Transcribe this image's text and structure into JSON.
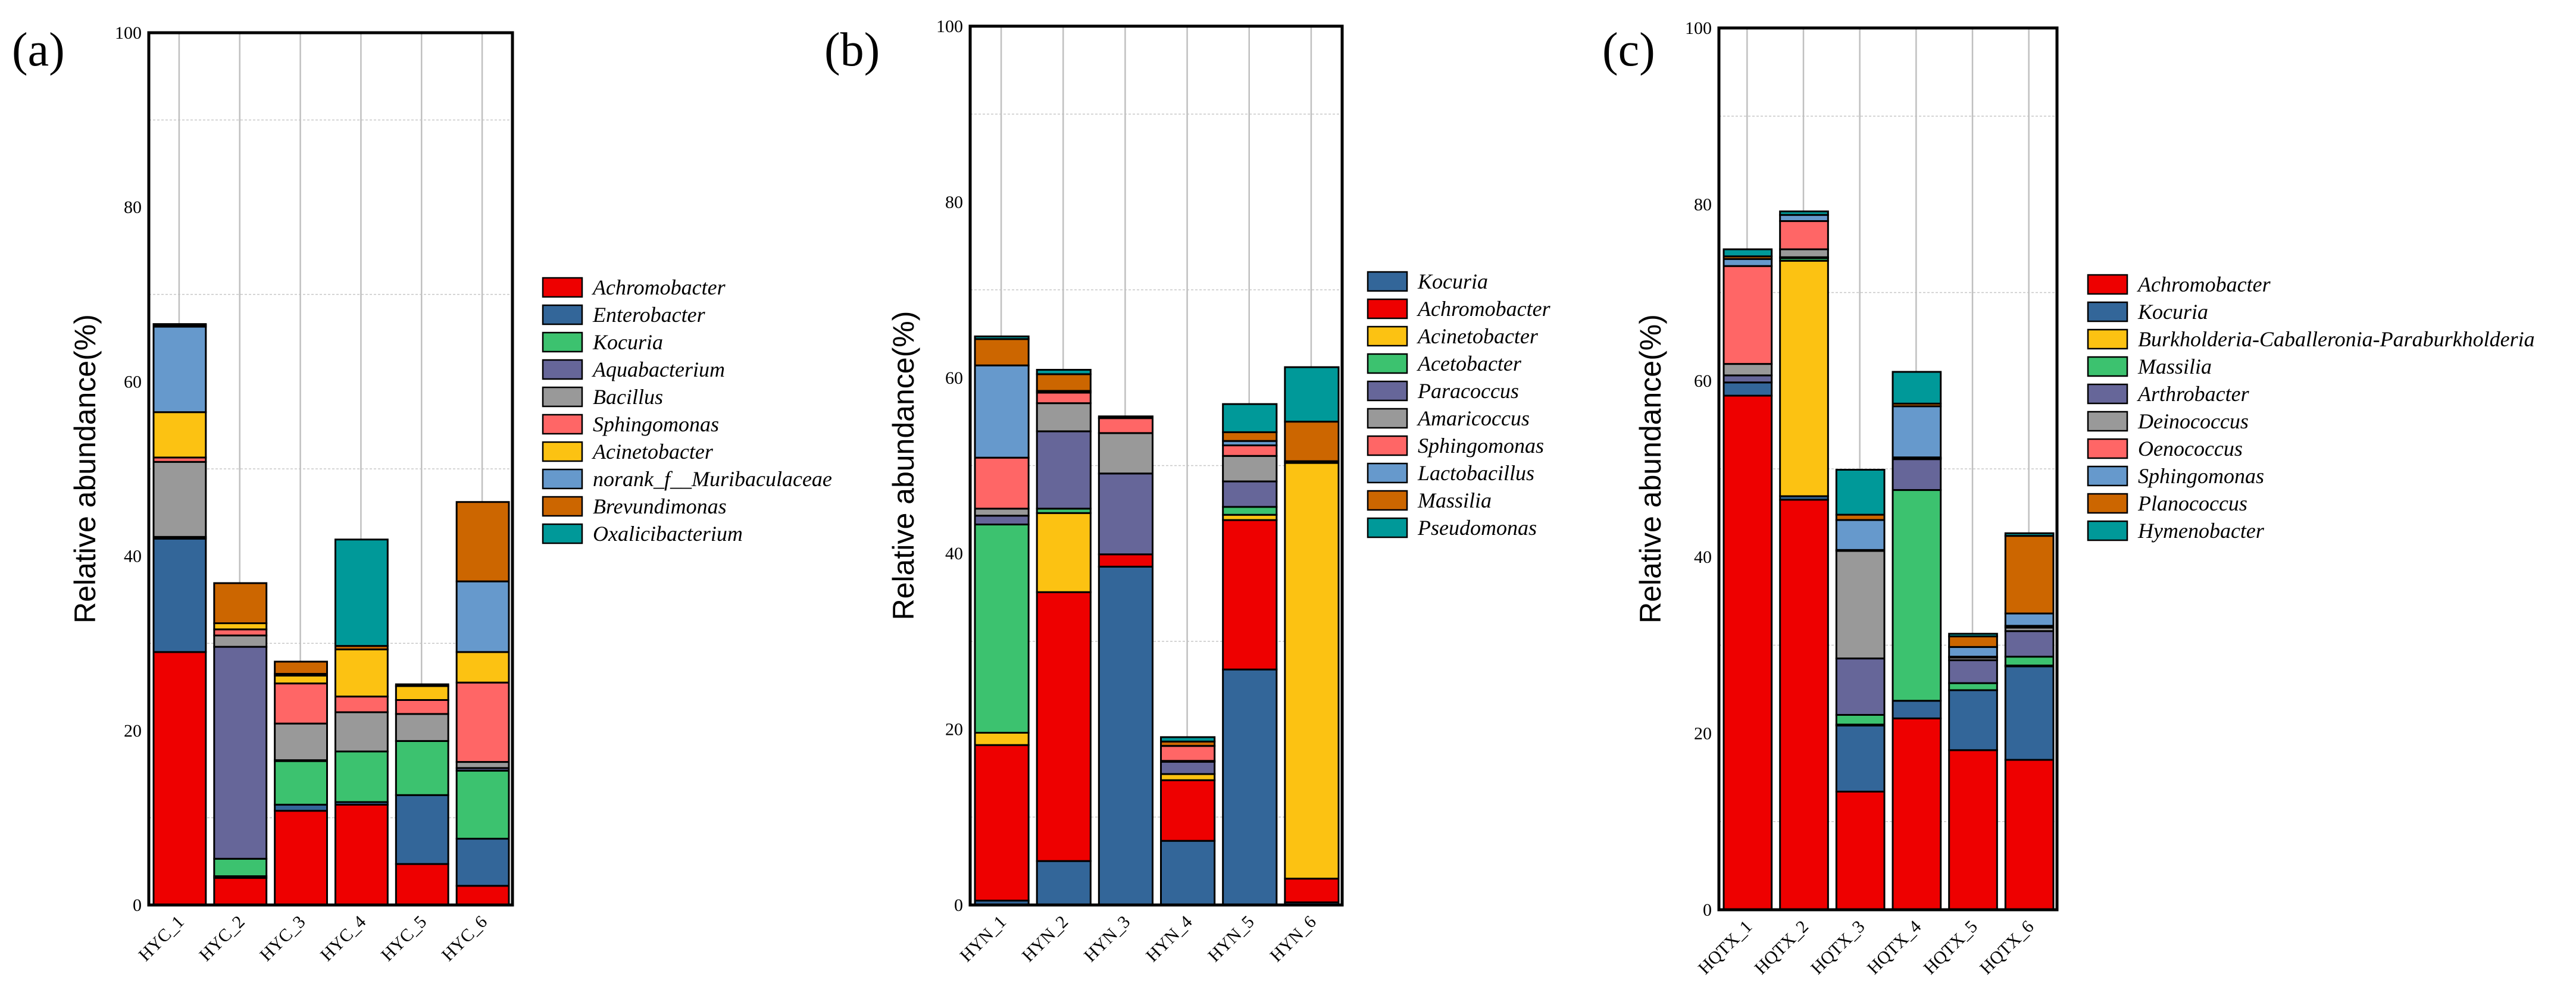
{
  "colors": [
    "#EE0000",
    "#336699",
    "#3CC26F",
    "#666699",
    "#999999",
    "#FF6666",
    "#FCC212",
    "#6699CC",
    "#CC6600",
    "#009999"
  ],
  "chart_data": [
    {
      "type": "bar",
      "stacked": true,
      "panel_label": "(a)",
      "ylabel": "Relative abundance(%)",
      "ylim": [
        0,
        100
      ],
      "yticks": [
        0,
        20,
        40,
        60,
        80,
        100
      ],
      "legend_position": "right",
      "categories": [
        "HYC_1",
        "HYC_2",
        "HYC_3",
        "HYC_4",
        "HYC_5",
        "HYC_6"
      ],
      "colors": [
        "#EE0000",
        "#336699",
        "#3CC26F",
        "#666699",
        "#999999",
        "#FF6666",
        "#FCC212",
        "#6699CC",
        "#CC6600",
        "#009999"
      ],
      "series": [
        {
          "name": "Achromobacter",
          "values": [
            29.0,
            3.1,
            10.8,
            11.5,
            4.7,
            2.2
          ]
        },
        {
          "name": "Enterobacter",
          "values": [
            13.0,
            0.2,
            0.7,
            0.3,
            7.9,
            5.4
          ]
        },
        {
          "name": "Kocuria",
          "values": [
            0.0,
            2.0,
            5.0,
            5.8,
            6.2,
            7.8
          ]
        },
        {
          "name": "Aquabacterium",
          "values": [
            0.2,
            24.3,
            0.1,
            0.0,
            0.0,
            0.3
          ]
        },
        {
          "name": "Bacillus",
          "values": [
            8.6,
            1.3,
            4.2,
            4.5,
            3.1,
            0.7
          ]
        },
        {
          "name": "Sphingomonas",
          "values": [
            0.5,
            0.7,
            4.6,
            1.8,
            1.6,
            9.1
          ]
        },
        {
          "name": "Acinetobacter",
          "values": [
            5.2,
            0.7,
            0.9,
            5.4,
            1.6,
            3.5
          ]
        },
        {
          "name": "norank_f__Muribaculaceae",
          "values": [
            9.8,
            0.0,
            0.2,
            0.0,
            0.0,
            8.1
          ]
        },
        {
          "name": "Brevundimonas",
          "values": [
            0.2,
            4.6,
            1.4,
            0.4,
            0.2,
            9.1
          ]
        },
        {
          "name": "Oxalicibacterium",
          "values": [
            0.1,
            0.0,
            0.0,
            12.2,
            0.0,
            0.0
          ]
        }
      ]
    },
    {
      "type": "bar",
      "stacked": true,
      "panel_label": "(b)",
      "ylabel": "Relative abundance(%)",
      "ylim": [
        0,
        100
      ],
      "yticks": [
        0,
        20,
        40,
        60,
        80,
        100
      ],
      "legend_position": "right",
      "categories": [
        "HYN_1",
        "HYN_2",
        "HYN_3",
        "HYN_4",
        "HYN_5",
        "HYN_6"
      ],
      "colors": [
        "#336699",
        "#EE0000",
        "#FCC212",
        "#3CC26F",
        "#666699",
        "#999999",
        "#FF6666",
        "#6699CC",
        "#CC6600",
        "#009999"
      ],
      "series": [
        {
          "name": "Kocuria",
          "values": [
            0.5,
            5.0,
            38.5,
            7.3,
            26.8,
            0.3
          ]
        },
        {
          "name": "Achromobacter",
          "values": [
            17.7,
            30.6,
            1.4,
            6.9,
            17.0,
            2.7
          ]
        },
        {
          "name": "Acinetobacter",
          "values": [
            1.4,
            9.0,
            0.0,
            0.7,
            0.6,
            47.3
          ]
        },
        {
          "name": "Acetobacter",
          "values": [
            23.7,
            0.5,
            0.0,
            0.0,
            0.9,
            0.0
          ]
        },
        {
          "name": "Paracoccus",
          "values": [
            1.0,
            8.8,
            9.2,
            1.4,
            2.9,
            0.0
          ]
        },
        {
          "name": "Amaricoccus",
          "values": [
            0.8,
            3.2,
            4.6,
            0.1,
            2.9,
            0.0
          ]
        },
        {
          "name": "Sphingomonas",
          "values": [
            5.8,
            1.2,
            1.7,
            1.7,
            1.2,
            0.0
          ]
        },
        {
          "name": "Lactobacillus",
          "values": [
            10.5,
            0.2,
            0.0,
            0.0,
            0.5,
            0.2
          ]
        },
        {
          "name": "Massilia",
          "values": [
            3.0,
            1.9,
            0.2,
            0.5,
            1.0,
            4.5
          ]
        },
        {
          "name": "Pseudomonas",
          "values": [
            0.3,
            0.5,
            0.0,
            0.5,
            3.2,
            6.2
          ]
        }
      ]
    },
    {
      "type": "bar",
      "stacked": true,
      "panel_label": "(c)",
      "ylabel": "Relative abundance(%)",
      "ylim": [
        0,
        100
      ],
      "yticks": [
        0,
        20,
        40,
        60,
        80,
        100
      ],
      "legend_position": "right",
      "categories": [
        "HQTX_1",
        "HQTX_2",
        "HQTX_3",
        "HQTX_4",
        "HQTX_5",
        "HQTX_6"
      ],
      "colors": [
        "#EE0000",
        "#336699",
        "#FCC212",
        "#3CC26F",
        "#666699",
        "#999999",
        "#FF6666",
        "#6699CC",
        "#CC6600",
        "#009999"
      ],
      "series": [
        {
          "name": "Achromobacter",
          "values": [
            58.3,
            46.5,
            13.4,
            21.7,
            18.1,
            17.0
          ]
        },
        {
          "name": "Kocuria",
          "values": [
            1.5,
            0.4,
            7.5,
            2.0,
            6.8,
            10.6
          ]
        },
        {
          "name": "Burkholderia-Caballeronia-Paraburkholderia",
          "values": [
            0.0,
            26.7,
            0.1,
            0.0,
            0.0,
            0.1
          ]
        },
        {
          "name": "Massilia",
          "values": [
            0.0,
            0.3,
            1.1,
            23.9,
            0.8,
            1.0
          ]
        },
        {
          "name": "Arthrobacter",
          "values": [
            0.8,
            0.1,
            6.4,
            3.5,
            2.6,
            2.9
          ]
        },
        {
          "name": "Deinococcus",
          "values": [
            1.3,
            0.9,
            12.2,
            0.1,
            0.3,
            0.4
          ]
        },
        {
          "name": "Oenococcus",
          "values": [
            11.1,
            3.2,
            0.1,
            0.1,
            0.1,
            0.2
          ]
        },
        {
          "name": "Sphingomonas",
          "values": [
            0.8,
            0.7,
            3.4,
            5.8,
            1.1,
            1.4
          ]
        },
        {
          "name": "Planococcus",
          "values": [
            0.3,
            0.0,
            0.6,
            0.3,
            1.2,
            8.8
          ]
        },
        {
          "name": "Hymenobacter",
          "values": [
            0.8,
            0.4,
            5.1,
            3.6,
            0.3,
            0.3
          ]
        }
      ]
    }
  ]
}
